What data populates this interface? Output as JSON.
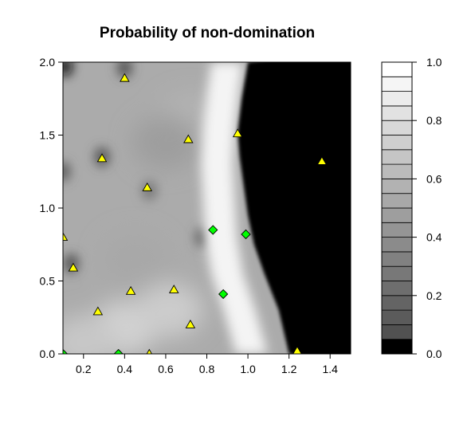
{
  "chart_data": {
    "type": "heatmap",
    "title": "Probability of non-domination",
    "xlabel": "",
    "ylabel": "",
    "xlim": [
      0.1,
      1.5
    ],
    "ylim": [
      0.0,
      2.0
    ],
    "x_ticks": [
      "0.2",
      "0.4",
      "0.6",
      "0.8",
      "1.0",
      "1.2",
      "1.4"
    ],
    "y_ticks": [
      "0.0",
      "0.5",
      "1.0",
      "1.5",
      "2.0"
    ],
    "colorbar": {
      "range": [
        0.0,
        1.0
      ],
      "levels": 20,
      "ticks": [
        "0.0",
        "0.2",
        "0.4",
        "0.6",
        "0.8",
        "1.0"
      ],
      "low_color": "#000000",
      "high_color": "#ffffff"
    },
    "frontier": [
      [
        1.2,
        0.0
      ],
      [
        1.15,
        0.3
      ],
      [
        1.08,
        0.55
      ],
      [
        1.03,
        0.75
      ],
      [
        1.0,
        0.95
      ],
      [
        0.98,
        1.15
      ],
      [
        0.96,
        1.35
      ],
      [
        0.95,
        1.52
      ],
      [
        0.97,
        1.75
      ],
      [
        1.0,
        2.0
      ]
    ],
    "bright_ridge": [
      [
        1.05,
        0.0
      ],
      [
        0.99,
        0.3
      ],
      [
        0.93,
        0.55
      ],
      [
        0.9,
        0.8
      ],
      [
        0.89,
        1.05
      ],
      [
        0.88,
        1.3
      ],
      [
        0.89,
        1.55
      ],
      [
        0.91,
        1.8
      ],
      [
        0.93,
        2.0
      ]
    ],
    "dark_spots": [
      {
        "x": 0.11,
        "y": 1.97,
        "v": 0.05
      },
      {
        "x": 0.4,
        "y": 1.96,
        "v": 0.3
      },
      {
        "x": 0.29,
        "y": 1.35,
        "v": 0.3
      },
      {
        "x": 0.14,
        "y": 0.62,
        "v": 0.3
      },
      {
        "x": 0.78,
        "y": 0.8,
        "v": 0.35
      },
      {
        "x": 0.1,
        "y": 1.25,
        "v": 0.35
      },
      {
        "x": 0.52,
        "y": 1.12,
        "v": 0.45
      }
    ],
    "light_spots": [
      {
        "x": 0.4,
        "y": 0.18,
        "v": 0.82
      },
      {
        "x": 0.62,
        "y": 0.3,
        "v": 0.8
      },
      {
        "x": 0.2,
        "y": 0.08,
        "v": 0.78
      },
      {
        "x": 0.72,
        "y": 1.6,
        "v": 0.7
      },
      {
        "x": 0.45,
        "y": 0.65,
        "v": 0.66
      },
      {
        "x": 0.6,
        "y": 1.45,
        "v": 0.62
      }
    ],
    "series": [
      {
        "name": "",
        "marker": "triangle",
        "color": "#ffff00",
        "points": [
          [
            0.4,
            1.89
          ],
          [
            0.29,
            1.34
          ],
          [
            0.51,
            1.14
          ],
          [
            0.71,
            1.47
          ],
          [
            0.95,
            1.51
          ],
          [
            1.36,
            1.32
          ],
          [
            0.1,
            0.8
          ],
          [
            0.15,
            0.59
          ],
          [
            0.27,
            0.29
          ],
          [
            0.43,
            0.43
          ],
          [
            0.64,
            0.44
          ],
          [
            0.72,
            0.2
          ],
          [
            0.52,
            0.0
          ],
          [
            1.24,
            0.02
          ]
        ]
      },
      {
        "name": "",
        "marker": "diamond",
        "color": "#00ff00",
        "points": [
          [
            0.83,
            0.85
          ],
          [
            0.99,
            0.82
          ],
          [
            0.88,
            0.41
          ],
          [
            0.37,
            0.0
          ],
          [
            0.1,
            0.0
          ]
        ]
      }
    ]
  }
}
